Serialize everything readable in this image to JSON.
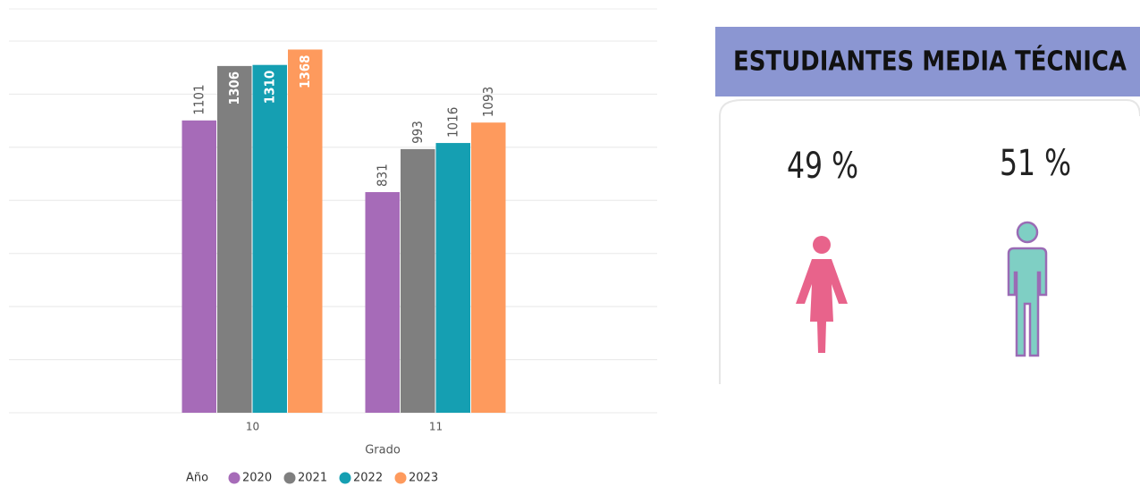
{
  "chart_data": {
    "type": "bar",
    "x_label": "Grado",
    "legend_title": "Año",
    "categories": [
      "10",
      "11"
    ],
    "series": [
      {
        "name": "2020",
        "color": "#a66bb8",
        "values": [
          1101,
          831
        ]
      },
      {
        "name": "2021",
        "color": "#7f7f7f",
        "values": [
          1306,
          993
        ]
      },
      {
        "name": "2022",
        "color": "#159fb2",
        "values": [
          1310,
          1016
        ]
      },
      {
        "name": "2023",
        "color": "#fe9a5d",
        "values": [
          1368,
          1093
        ]
      }
    ],
    "ylim": [
      0,
      1420
    ],
    "yticks": [
      0,
      200,
      400,
      600,
      800,
      1000,
      1200,
      1400
    ],
    "grid": true
  },
  "panel": {
    "title": "ESTUDIANTES MEDIA TÉCNICA",
    "female": "49 %",
    "male": "51 %"
  }
}
